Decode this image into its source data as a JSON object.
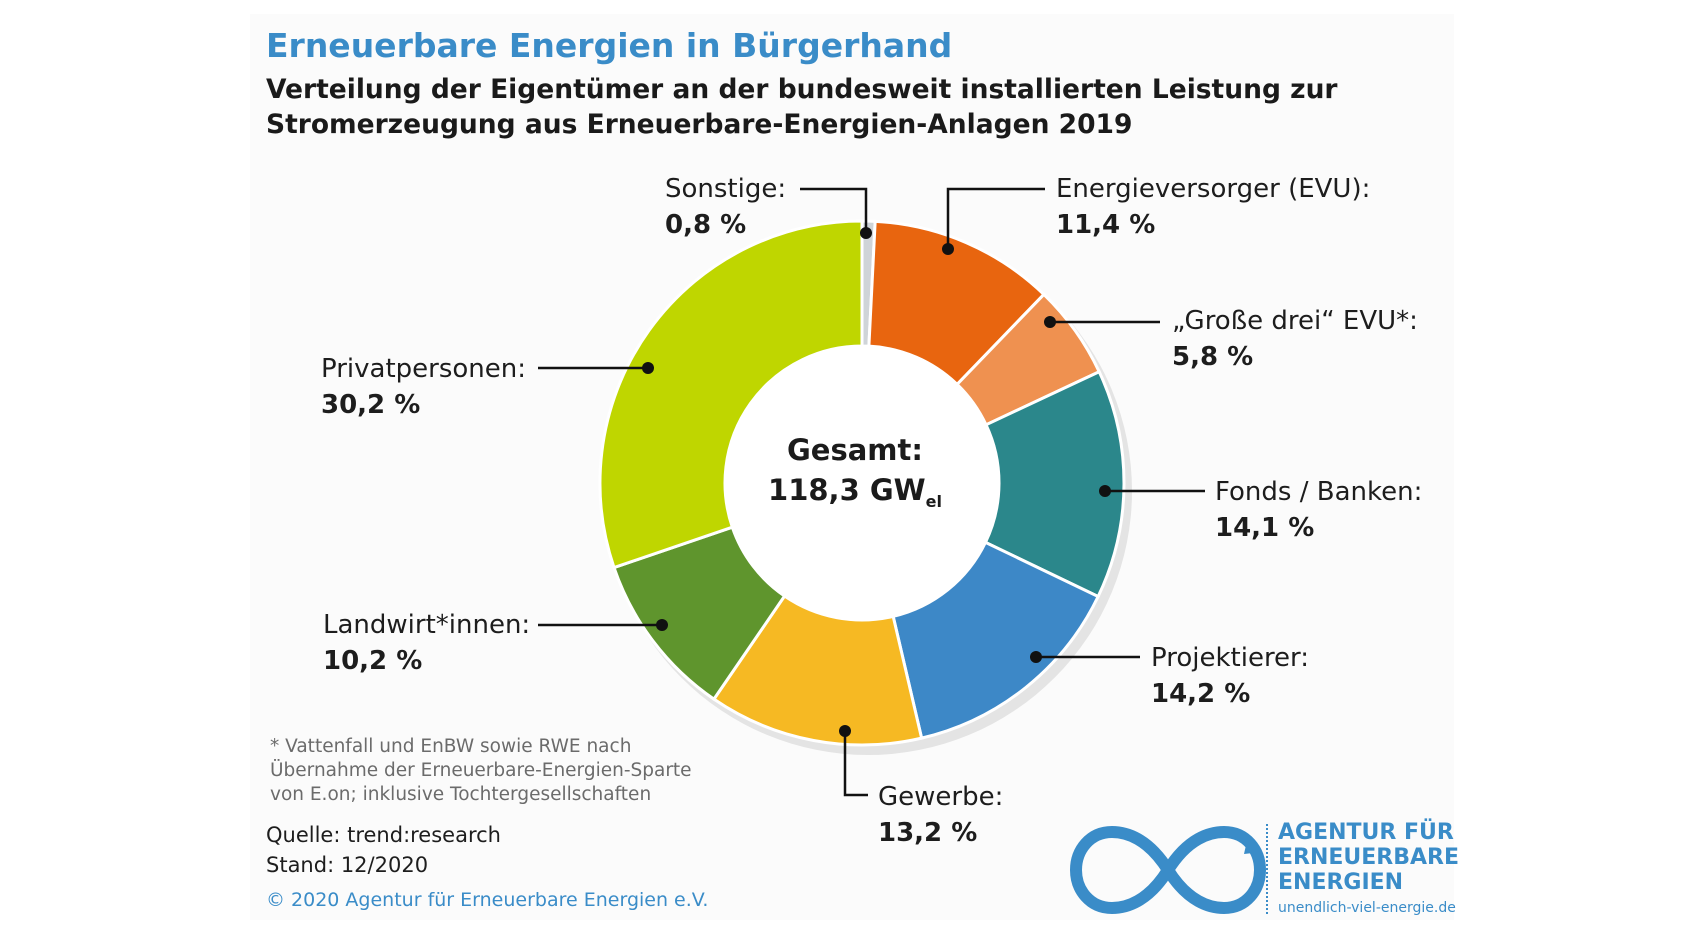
{
  "header": {
    "title": "Erneuerbare Energien in Bürgerhand",
    "subtitle": "Verteilung der Eigentümer an der bundesweit installierten Leistung zur Stromerzeugung aus Erneuerbare-Energien-Anlagen 2019"
  },
  "center": {
    "line1": "Gesamt:",
    "value": "118,3 GW",
    "unit_sub": "el"
  },
  "chart_data": {
    "type": "pie",
    "donut": true,
    "title": "Erneuerbare Energien in Bürgerhand",
    "total": "118,3 GWel",
    "slices": [
      {
        "name": "Sonstige:",
        "label": "0,8 %",
        "value": 0.8,
        "color": "#cfd4d8"
      },
      {
        "name": "Energieversorger (EVU):",
        "label": "11,4 %",
        "value": 11.4,
        "color": "#e8650f"
      },
      {
        "name": "„Große drei“ EVU*:",
        "label": "5,8 %",
        "value": 5.8,
        "color": "#ef9150"
      },
      {
        "name": "Fonds / Banken:",
        "label": "14,1 %",
        "value": 14.1,
        "color": "#2b878b"
      },
      {
        "name": "Projektierer:",
        "label": "14,2 %",
        "value": 14.2,
        "color": "#3d88c7"
      },
      {
        "name": "Gewerbe:",
        "label": "13,2 %",
        "value": 13.2,
        "color": "#f6b923"
      },
      {
        "name": "Landwirt*innen:",
        "label": "10,2 %",
        "value": 10.2,
        "color": "#5f952d"
      },
      {
        "name": "Privatpersonen:",
        "label": "30,2 %",
        "value": 30.2,
        "color": "#bfd600"
      }
    ]
  },
  "footnote": "* Vattenfall und EnBW sowie RWE nach Übernahme der Erneuerbare-Energien-Sparte von E.on; inklusive Tochtergesellschaften",
  "source": {
    "line1": "Quelle: trend:research",
    "line2": "Stand: 12/2020"
  },
  "copyright": "© 2020 Agentur für Erneuerbare Energien e.V.",
  "logo": {
    "line1": "AGENTUR FÜR",
    "line2": "ERNEUERBARE",
    "line3": "ENERGIEN",
    "url": "unendlich-viel-energie.de",
    "color": "#3a8cc8"
  }
}
